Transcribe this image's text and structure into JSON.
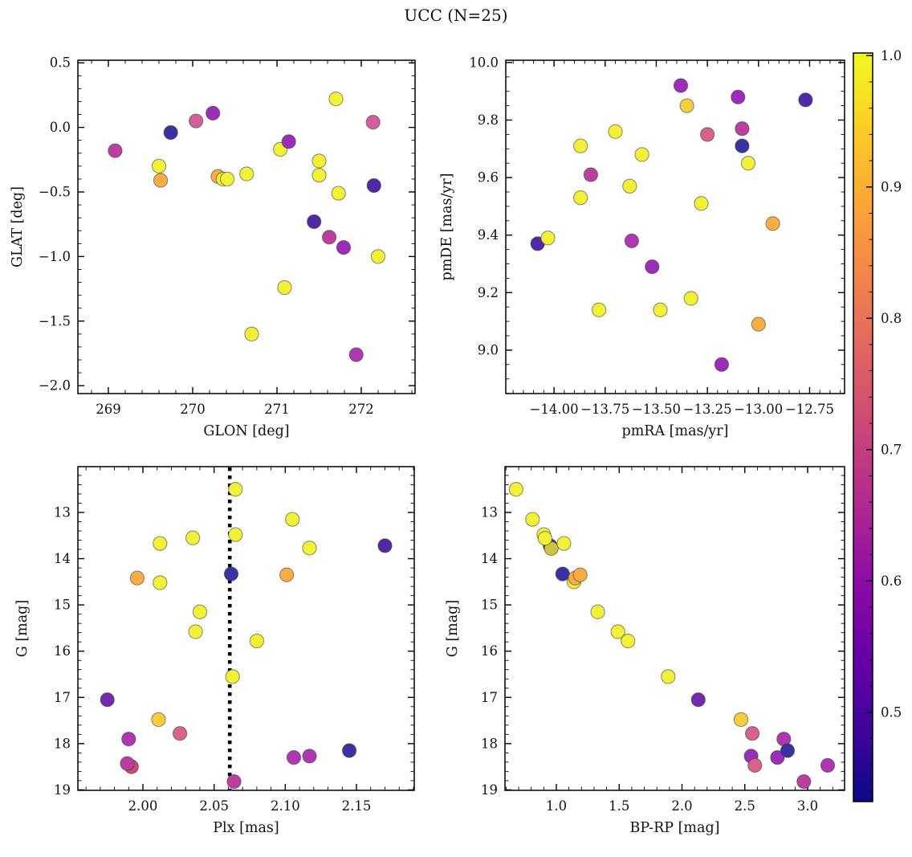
{
  "title": "UCC (N=25)",
  "palette": {
    "Y": "#f1f138",
    "OL": "#cdc33e",
    "G": "#f6ce3c",
    "O": "#f9ad42",
    "PK": "#d0609c",
    "RO": "#d7628c",
    "CR": "#c94d72",
    "MA": "#bc3f9f",
    "MP": "#af38b2",
    "PU": "#9b2db8",
    "VI": "#7429ae",
    "IN": "#4f2aa5",
    "NA": "#3933a2"
  },
  "chart_data": [
    {
      "id": "glat-vs-glon",
      "type": "scatter",
      "xlabel": "GLON [deg]",
      "ylabel": "GLAT [deg]",
      "xlim": [
        268.638,
        272.638
      ],
      "ylim": [
        0.52,
        -2.061
      ],
      "xticks": {
        "values": [
          269,
          270,
          271,
          272
        ],
        "labels": [
          "269",
          "270",
          "271",
          "272"
        ],
        "minor": 0.2
      },
      "yticks": {
        "values": [
          0.5,
          0.0,
          -0.5,
          -1.0,
          -1.5,
          -2.0
        ],
        "labels": [
          "0.5",
          "0.0",
          "−0.5",
          "−1.0",
          "−1.5",
          "−2.0"
        ],
        "minor": 0.1
      },
      "points": [
        [
          269.08,
          -0.18,
          "MA"
        ],
        [
          269.6,
          -0.3,
          "Y"
        ],
        [
          269.62,
          -0.41,
          "O"
        ],
        [
          269.74,
          -0.04,
          "NA"
        ],
        [
          270.04,
          0.05,
          "PK"
        ],
        [
          270.24,
          0.11,
          "PU"
        ],
        [
          270.3,
          -0.38,
          "O"
        ],
        [
          270.36,
          -0.4,
          "Y"
        ],
        [
          270.41,
          -0.4,
          "Y"
        ],
        [
          270.64,
          -0.36,
          "Y"
        ],
        [
          270.7,
          -1.6,
          "Y"
        ],
        [
          271.04,
          -0.17,
          "Y"
        ],
        [
          271.09,
          -1.24,
          "Y"
        ],
        [
          271.14,
          -0.11,
          "PU"
        ],
        [
          271.44,
          -0.73,
          "IN"
        ],
        [
          271.5,
          -0.26,
          "Y"
        ],
        [
          271.5,
          -0.37,
          "Y"
        ],
        [
          271.62,
          -0.85,
          "MA"
        ],
        [
          271.7,
          0.22,
          "Y"
        ],
        [
          271.73,
          -0.51,
          "Y"
        ],
        [
          271.79,
          -0.93,
          "PU"
        ],
        [
          271.94,
          -1.76,
          "MP"
        ],
        [
          272.14,
          0.04,
          "PK"
        ],
        [
          272.15,
          -0.45,
          "IN"
        ],
        [
          272.2,
          -1.0,
          "Y"
        ]
      ]
    },
    {
      "id": "pmde-vs-pmra",
      "type": "scatter",
      "xlabel": "pmRA [mas/yr]",
      "ylabel": "pmDE [mas/yr]",
      "xlim": [
        -14.236,
        -12.579
      ],
      "ylim": [
        10.008,
        8.849
      ],
      "xticks": {
        "values": [
          -14.0,
          -13.75,
          -13.5,
          -13.25,
          -13.0,
          -12.75
        ],
        "labels": [
          "−14.00",
          "−13.75",
          "−13.50",
          "−13.25",
          "−13.00",
          "−12.75"
        ],
        "minor": 0.05
      },
      "yticks": {
        "values": [
          9.0,
          9.2,
          9.4,
          9.6,
          9.8,
          10.0
        ],
        "labels": [
          "9.0",
          "9.2",
          "9.4",
          "9.6",
          "9.8",
          "10.0"
        ],
        "minor": 0.05
      },
      "points": [
        [
          -14.08,
          9.37,
          "IN"
        ],
        [
          -14.03,
          9.39,
          "Y"
        ],
        [
          -13.87,
          9.71,
          "Y"
        ],
        [
          -13.87,
          9.53,
          "Y"
        ],
        [
          -13.82,
          9.61,
          "MA"
        ],
        [
          -13.78,
          9.14,
          "Y"
        ],
        [
          -13.7,
          9.76,
          "Y"
        ],
        [
          -13.63,
          9.57,
          "Y"
        ],
        [
          -13.62,
          9.38,
          "MP"
        ],
        [
          -13.57,
          9.68,
          "Y"
        ],
        [
          -13.52,
          9.29,
          "PU"
        ],
        [
          -13.48,
          9.14,
          "Y"
        ],
        [
          -13.38,
          9.92,
          "PU"
        ],
        [
          -13.35,
          9.85,
          "G"
        ],
        [
          -13.33,
          9.18,
          "Y"
        ],
        [
          -13.28,
          9.51,
          "Y"
        ],
        [
          -13.25,
          9.75,
          "RO"
        ],
        [
          -13.18,
          8.95,
          "PU"
        ],
        [
          -13.1,
          9.88,
          "PU"
        ],
        [
          -13.08,
          9.77,
          "MA"
        ],
        [
          -13.08,
          9.71,
          "NA"
        ],
        [
          -13.05,
          9.65,
          "Y"
        ],
        [
          -13.0,
          9.09,
          "O"
        ],
        [
          -12.93,
          9.44,
          "O"
        ],
        [
          -12.77,
          9.87,
          "IN"
        ]
      ]
    },
    {
      "id": "g-vs-plx",
      "type": "scatter",
      "xlabel": "Plx [mas]",
      "ylabel": "G [mag]",
      "xlim": [
        1.9543,
        2.1906
      ],
      "ylim": [
        12.01,
        19.01
      ],
      "xticks": {
        "values": [
          2.0,
          2.05,
          2.1,
          2.15
        ],
        "labels": [
          "2.00",
          "2.05",
          "2.10",
          "2.15"
        ],
        "minor": 0.01
      },
      "yticks": {
        "values": [
          13,
          14,
          15,
          16,
          17,
          18,
          19
        ],
        "labels": [
          "13",
          "14",
          "15",
          "16",
          "17",
          "18",
          "19"
        ],
        "minor": 0.2
      },
      "vline": {
        "x": 2.061,
        "color": "#000000",
        "style": "dotted"
      },
      "points": [
        [
          2.065,
          12.5,
          "Y"
        ],
        [
          2.105,
          13.15,
          "Y"
        ],
        [
          2.065,
          13.48,
          "Y"
        ],
        [
          2.035,
          13.55,
          "Y"
        ],
        [
          2.012,
          13.67,
          "Y"
        ],
        [
          2.117,
          13.77,
          "Y"
        ],
        [
          2.17,
          13.72,
          "IN"
        ],
        [
          2.101,
          14.35,
          "O"
        ],
        [
          1.996,
          14.42,
          "O"
        ],
        [
          2.012,
          14.52,
          "Y"
        ],
        [
          2.062,
          14.33,
          "NA"
        ],
        [
          2.04,
          15.15,
          "Y"
        ],
        [
          2.037,
          15.58,
          "Y"
        ],
        [
          2.08,
          15.78,
          "Y"
        ],
        [
          2.063,
          16.55,
          "Y"
        ],
        [
          1.975,
          17.05,
          "VI"
        ],
        [
          2.011,
          17.48,
          "G"
        ],
        [
          2.026,
          17.78,
          "RO"
        ],
        [
          1.99,
          17.9,
          "MP"
        ],
        [
          1.992,
          18.5,
          "CR"
        ],
        [
          1.989,
          18.43,
          "MA"
        ],
        [
          2.106,
          18.3,
          "MP"
        ],
        [
          2.117,
          18.27,
          "MP"
        ],
        [
          2.145,
          18.15,
          "NA"
        ],
        [
          2.064,
          18.82,
          "MA"
        ]
      ]
    },
    {
      "id": "g-vs-bprp",
      "type": "scatter",
      "xlabel": "BP-RP [mag]",
      "ylabel": "G [mag]",
      "xlim": [
        0.591,
        3.294
      ],
      "ylim": [
        12.01,
        19.01
      ],
      "xticks": {
        "values": [
          1.0,
          1.5,
          2.0,
          2.5,
          3.0
        ],
        "labels": [
          "1.0",
          "1.5",
          "2.0",
          "2.5",
          "3.0"
        ],
        "minor": 0.1
      },
      "yticks": {
        "values": [
          13,
          14,
          15,
          16,
          17,
          18,
          19
        ],
        "labels": [
          "13",
          "14",
          "15",
          "16",
          "17",
          "18",
          "19"
        ],
        "minor": 0.2
      },
      "points": [
        [
          1.14,
          14.5,
          "Y"
        ],
        [
          0.95,
          13.72,
          "IN"
        ],
        [
          0.96,
          13.78,
          "OL"
        ],
        [
          0.68,
          12.5,
          "Y"
        ],
        [
          0.81,
          13.15,
          "Y"
        ],
        [
          0.9,
          13.48,
          "Y"
        ],
        [
          0.91,
          13.56,
          "Y"
        ],
        [
          1.06,
          13.67,
          "Y"
        ],
        [
          1.05,
          14.33,
          "NA"
        ],
        [
          1.15,
          14.42,
          "O"
        ],
        [
          1.19,
          14.35,
          "O"
        ],
        [
          1.33,
          15.15,
          "Y"
        ],
        [
          1.49,
          15.58,
          "Y"
        ],
        [
          1.57,
          15.78,
          "Y"
        ],
        [
          1.89,
          16.55,
          "Y"
        ],
        [
          2.13,
          17.05,
          "VI"
        ],
        [
          2.47,
          17.48,
          "G"
        ],
        [
          2.56,
          17.78,
          "RO"
        ],
        [
          2.55,
          18.27,
          "PU"
        ],
        [
          2.58,
          18.47,
          "RO"
        ],
        [
          2.76,
          18.3,
          "PU"
        ],
        [
          2.81,
          17.9,
          "MP"
        ],
        [
          2.84,
          18.15,
          "NA"
        ],
        [
          2.97,
          18.82,
          "MA"
        ],
        [
          3.16,
          18.47,
          "MP"
        ]
      ]
    },
    {
      "id": "colorbar",
      "type": "colorbar",
      "colormap": "plasma",
      "lim": [
        1.002,
        0.432
      ],
      "ticks": {
        "values": [
          1.0,
          0.9,
          0.8,
          0.7,
          0.6,
          0.5
        ],
        "labels": [
          "1.0",
          "0.9",
          "0.8",
          "0.7",
          "0.6",
          "0.5"
        ],
        "minor": 0.02
      },
      "gradient_top_to_bottom": [
        "#f0f921",
        "#fcce25",
        "#fca636",
        "#f2844b",
        "#e16462",
        "#cc4778",
        "#b12a90",
        "#8f0da4",
        "#6a00a8",
        "#41049d",
        "#0d0887"
      ]
    }
  ]
}
